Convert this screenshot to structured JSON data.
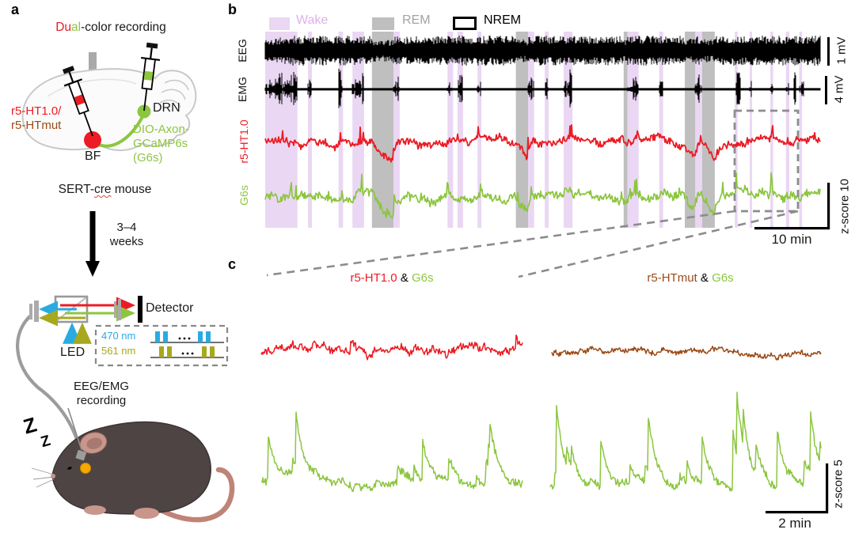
{
  "colors": {
    "red": "#EC1C24",
    "green": "#8CC63F",
    "brown": "#9C4A17",
    "wake_band": "#EAD7F3",
    "wake_text": "#DCB2E8",
    "rem_band": "#BFBFBF",
    "rem_text": "#A3A3A3",
    "blue": "#29ABE2",
    "olive": "#A8A81E",
    "dash_gray": "#8C8C8C"
  },
  "panel_a": {
    "label": "a",
    "title": {
      "part1": "Du",
      "part2": "al",
      "part3": "-color recording"
    },
    "injection": {
      "sensor_line1": "r5-HT1.0/",
      "sensor_line2": "r5-HTmut",
      "target_drn": "DRN",
      "virus_line1": "DIO-Axon-",
      "virus_line2": "GCaMP6s",
      "virus_line3": "(G6s)",
      "target_bf": "BF"
    },
    "mouse_line": {
      "part1": "SERT-",
      "part2": "cre",
      "part3": " mouse"
    },
    "duration": {
      "line1": "3–4",
      "line2": "weeks"
    },
    "optics": {
      "detector": "Detector",
      "led": "LED",
      "wavelength_blue": "470 nm",
      "wavelength_yellow": "561 nm"
    },
    "recording": {
      "line1": "EEG/EMG",
      "line2": "recording"
    },
    "sleep": {
      "z_large": "Z",
      "z_small": "Z"
    }
  },
  "panel_b": {
    "label": "b",
    "legend": {
      "wake": "Wake",
      "rem": "REM",
      "nrem": "NREM"
    },
    "trace_labels": {
      "eeg": "EEG",
      "emg": "EMG",
      "red": "r5-HT1.0",
      "green": "G6s"
    },
    "scale": {
      "eeg": "1 mV",
      "emg": "4 mV",
      "zscore": "z-score 10",
      "time": "10 min"
    },
    "bands": [
      {
        "type": "wake",
        "start": 0.0,
        "end": 0.058
      },
      {
        "type": "wake",
        "start": 0.077,
        "end": 0.084
      },
      {
        "type": "wake",
        "start": 0.132,
        "end": 0.14
      },
      {
        "type": "wake",
        "start": 0.157,
        "end": 0.178
      },
      {
        "type": "rem",
        "start": 0.192,
        "end": 0.231
      },
      {
        "type": "wake",
        "start": 0.231,
        "end": 0.242
      },
      {
        "type": "wake",
        "start": 0.328,
        "end": 0.338
      },
      {
        "type": "wake",
        "start": 0.346,
        "end": 0.356
      },
      {
        "type": "wake",
        "start": 0.382,
        "end": 0.389
      },
      {
        "type": "rem",
        "start": 0.451,
        "end": 0.473
      },
      {
        "type": "wake",
        "start": 0.473,
        "end": 0.484
      },
      {
        "type": "wake",
        "start": 0.503,
        "end": 0.51
      },
      {
        "type": "wake",
        "start": 0.537,
        "end": 0.553
      },
      {
        "type": "rem",
        "start": 0.645,
        "end": 0.652
      },
      {
        "type": "wake",
        "start": 0.652,
        "end": 0.672
      },
      {
        "type": "wake",
        "start": 0.709,
        "end": 0.716
      },
      {
        "type": "rem",
        "start": 0.755,
        "end": 0.774
      },
      {
        "type": "wake",
        "start": 0.774,
        "end": 0.786
      },
      {
        "type": "rem",
        "start": 0.786,
        "end": 0.809
      },
      {
        "type": "wake",
        "start": 0.845,
        "end": 0.85
      },
      {
        "type": "wake",
        "start": 0.872,
        "end": 0.876
      },
      {
        "type": "wake",
        "start": 0.909,
        "end": 0.914
      },
      {
        "type": "wake",
        "start": 0.937,
        "end": 0.943
      },
      {
        "type": "wake",
        "start": 0.961,
        "end": 0.966
      }
    ]
  },
  "panel_c": {
    "label": "c",
    "left_title": {
      "sensor": "r5-HT1.0",
      "sep": " & ",
      "reporter": "G6s"
    },
    "right_title": {
      "sensor": "r5-HTmut",
      "sep": " & ",
      "reporter": "G6s"
    },
    "scale": {
      "zscore": "z-score 5",
      "time": "2 min"
    }
  }
}
